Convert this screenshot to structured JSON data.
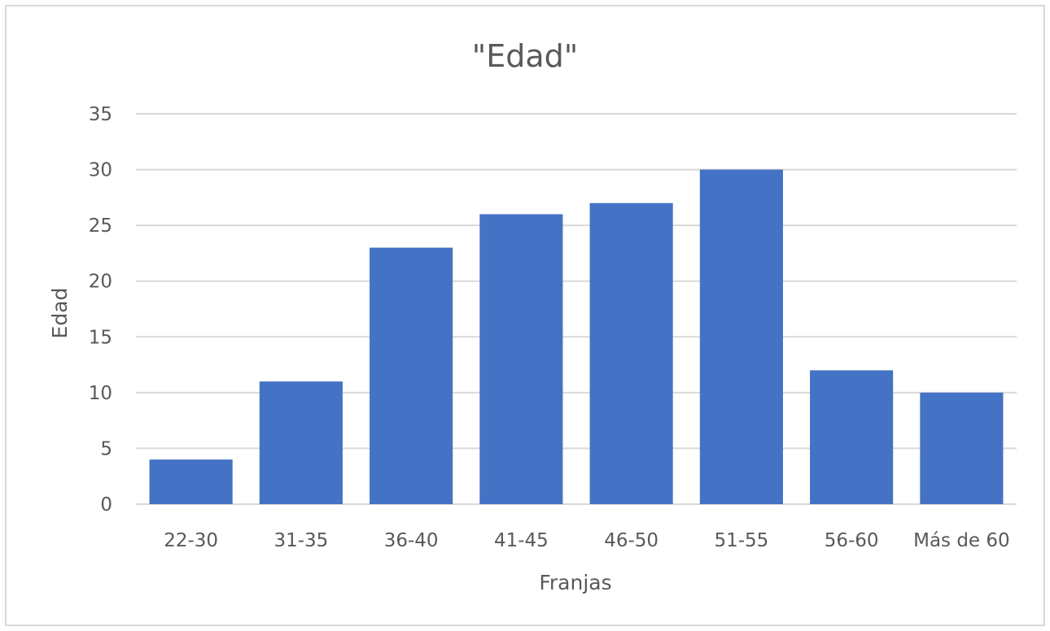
{
  "chart_data": {
    "type": "bar",
    "title": "\"Edad\"",
    "xlabel": "Franjas",
    "ylabel": "Edad",
    "categories": [
      "22-30",
      "31-35",
      "36-40",
      "41-45",
      "46-50",
      "51-55",
      "56-60",
      "Más de 60"
    ],
    "series": [
      {
        "values": [
          4,
          11,
          23,
          26,
          27,
          30,
          12,
          10
        ]
      }
    ],
    "ylim": [
      0,
      35
    ],
    "yticks": [
      0,
      5,
      10,
      15,
      20,
      25,
      30,
      35
    ],
    "grid": true,
    "legend": "none",
    "colors": {
      "bar": "#4472C4",
      "grid": "#D9D9D9",
      "text": "#595959",
      "border": "#D9D9D9",
      "background": "#FFFFFF"
    }
  }
}
